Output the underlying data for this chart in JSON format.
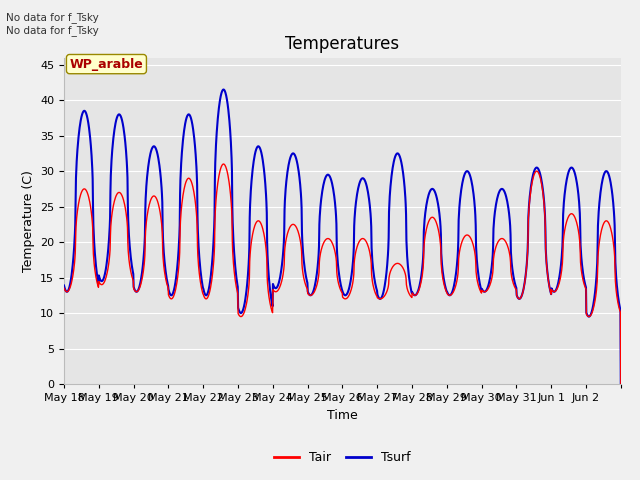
{
  "title": "Temperatures",
  "xlabel": "Time",
  "ylabel": "Temperature (C)",
  "background_color": "#f0f0f0",
  "plot_bg_color": "#e5e5e5",
  "tair_color": "#ff0000",
  "tsurf_color": "#0000cc",
  "tair_linewidth": 1.0,
  "tsurf_linewidth": 1.5,
  "ylim": [
    0,
    46
  ],
  "yticks": [
    0,
    5,
    10,
    15,
    20,
    25,
    30,
    35,
    40,
    45
  ],
  "title_fontsize": 12,
  "label_fontsize": 9,
  "tick_fontsize": 8,
  "watermark_text": "WP_arable",
  "notice_line1": "No data for f_Tsky",
  "notice_line2": "No data for f_Tsky",
  "x_tick_labels": [
    "May 18",
    "May 19",
    "May 20",
    "May 21",
    "May 22",
    "May 23",
    "May 24",
    "May 25",
    "May 26",
    "May 27",
    "May 28",
    "May 29",
    "May 30",
    "May 31",
    "Jun 1",
    "Jun 2"
  ],
  "legend_labels": [
    "Tair",
    "Tsurf"
  ],
  "daily_peaks_air": [
    27.5,
    27.0,
    26.5,
    29.0,
    31.0,
    23.0,
    22.5,
    20.5,
    20.5,
    17.0,
    23.5,
    21.0,
    20.5,
    30.0,
    24.0,
    23.0
  ],
  "daily_peaks_surf": [
    38.5,
    38.0,
    33.5,
    38.0,
    41.5,
    33.5,
    32.5,
    29.5,
    29.0,
    32.5,
    27.5,
    30.0,
    27.5,
    30.5,
    30.5,
    30.0
  ],
  "daily_mins_air": [
    13.0,
    14.0,
    13.0,
    12.0,
    12.0,
    9.5,
    13.0,
    12.5,
    12.0,
    12.0,
    12.5,
    12.5,
    13.0,
    12.0,
    13.0,
    9.5
  ],
  "daily_mins_surf": [
    13.0,
    14.5,
    13.0,
    12.5,
    12.5,
    10.0,
    13.5,
    12.5,
    12.5,
    12.0,
    12.5,
    12.5,
    13.0,
    12.0,
    13.0,
    9.5
  ]
}
